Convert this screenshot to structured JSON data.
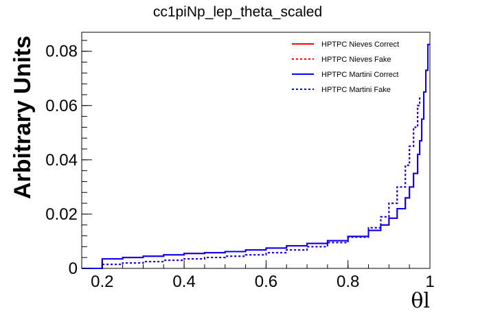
{
  "chart_data": {
    "type": "line",
    "title": "cc1piNp_lep_theta_scaled",
    "xlabel": "θl",
    "ylabel": "Arbitrary Units",
    "xlim": [
      0.15,
      1.0
    ],
    "ylim": [
      0,
      0.087
    ],
    "grid": false,
    "legend_position": "top-right",
    "x_ticks": [
      "0.2",
      "0.4",
      "0.6",
      "0.8",
      "1"
    ],
    "y_ticks": [
      "0",
      "0.02",
      "0.04",
      "0.06",
      "0.08"
    ],
    "x_tick_values": [
      0.2,
      0.4,
      0.6,
      0.8,
      1.0
    ],
    "y_tick_values": [
      0,
      0.02,
      0.04,
      0.06,
      0.08
    ],
    "series": [
      {
        "name": "HPTPC Nieves Correct",
        "color": "#ff0000",
        "dash": "solid",
        "x": [
          0.15,
          0.2,
          0.25,
          0.3,
          0.35,
          0.4,
          0.45,
          0.5,
          0.55,
          0.6,
          0.65,
          0.7,
          0.75,
          0.8,
          0.85,
          0.88,
          0.9,
          0.92,
          0.94,
          0.95,
          0.96,
          0.97,
          0.975,
          0.98,
          0.985,
          0.99,
          0.995,
          1.0
        ],
        "y": [
          0,
          0.0035,
          0.004,
          0.0045,
          0.005,
          0.0055,
          0.0058,
          0.0062,
          0.0068,
          0.0075,
          0.0083,
          0.0092,
          0.0102,
          0.0118,
          0.014,
          0.016,
          0.0185,
          0.022,
          0.026,
          0.03,
          0.035,
          0.042,
          0.047,
          0.055,
          0.065,
          0.073,
          0.0825,
          0.0825
        ]
      },
      {
        "name": "HPTPC Nieves Fake",
        "color": "#ff0000",
        "dash": "dashed",
        "x": [
          0.15,
          0.2,
          0.25,
          0.3,
          0.35,
          0.4,
          0.45,
          0.5,
          0.55,
          0.6,
          0.65,
          0.7,
          0.75,
          0.8,
          0.85,
          0.88,
          0.9,
          0.92,
          0.94,
          0.95,
          0.96,
          0.97,
          0.975
        ],
        "y": [
          0,
          0.0015,
          0.002,
          0.0025,
          0.003,
          0.0035,
          0.004,
          0.0045,
          0.005,
          0.0058,
          0.0068,
          0.008,
          0.0095,
          0.0115,
          0.015,
          0.019,
          0.024,
          0.03,
          0.038,
          0.045,
          0.052,
          0.06,
          0.063
        ]
      },
      {
        "name": "HPTPC Martini Correct",
        "color": "#0000ff",
        "dash": "solid",
        "x": [
          0.15,
          0.2,
          0.25,
          0.3,
          0.35,
          0.4,
          0.45,
          0.5,
          0.55,
          0.6,
          0.65,
          0.7,
          0.75,
          0.8,
          0.85,
          0.88,
          0.9,
          0.92,
          0.94,
          0.95,
          0.96,
          0.97,
          0.975,
          0.98,
          0.985,
          0.99,
          0.995,
          1.0
        ],
        "y": [
          0,
          0.0035,
          0.004,
          0.0045,
          0.005,
          0.0055,
          0.0058,
          0.0062,
          0.0068,
          0.0075,
          0.0083,
          0.0092,
          0.0102,
          0.0118,
          0.014,
          0.016,
          0.0185,
          0.022,
          0.026,
          0.03,
          0.035,
          0.042,
          0.047,
          0.055,
          0.065,
          0.073,
          0.0825,
          0.0825
        ]
      },
      {
        "name": "HPTPC Martini Fake",
        "color": "#0000ff",
        "dash": "dashed",
        "x": [
          0.15,
          0.2,
          0.25,
          0.3,
          0.35,
          0.4,
          0.45,
          0.5,
          0.55,
          0.6,
          0.65,
          0.7,
          0.75,
          0.8,
          0.85,
          0.88,
          0.9,
          0.92,
          0.94,
          0.95,
          0.96,
          0.97,
          0.975
        ],
        "y": [
          0,
          0.0015,
          0.002,
          0.0025,
          0.003,
          0.0035,
          0.004,
          0.0045,
          0.005,
          0.0058,
          0.0068,
          0.008,
          0.0095,
          0.0115,
          0.015,
          0.019,
          0.024,
          0.03,
          0.038,
          0.045,
          0.052,
          0.06,
          0.063
        ]
      }
    ]
  }
}
